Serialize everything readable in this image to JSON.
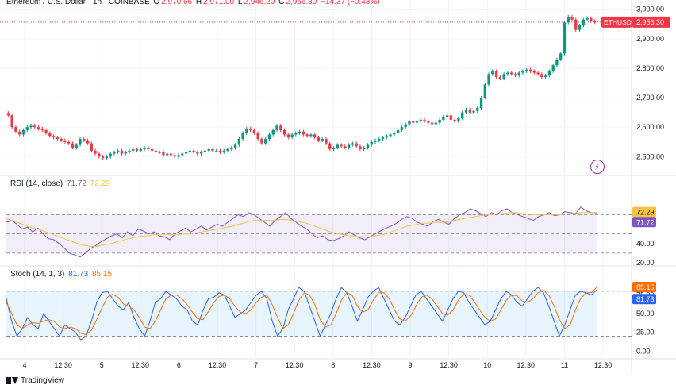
{
  "header": {
    "symbol_title": "Ethereum / U.S. Dollar · 1h · COINBASE",
    "o_label": "O",
    "o_value": "2,970.66",
    "h_label": "H",
    "h_value": "2,971.00",
    "l_label": "L",
    "l_value": "2,946.20",
    "c_label": "C",
    "c_value": "2,956.30",
    "change": "−14.37 (−0.48%)"
  },
  "price_tag": {
    "symbol": "ETHUSD",
    "value": "2,956.30",
    "color": "#f23645"
  },
  "rsi": {
    "title": "RSI (14, close)",
    "value1": "71.72",
    "value2": "72.29",
    "color_rsi": "#7e57c2",
    "color_ma": "#f5c242"
  },
  "stoch": {
    "title": "Stoch (14, 1, 3)",
    "value1": "81.73",
    "value2": "85.15",
    "color_k": "#2962ff",
    "color_d": "#ff6d00"
  },
  "footer": {
    "brand": "TradingView"
  },
  "colors": {
    "up": "#089981",
    "down": "#f23645",
    "grid": "#f0f3fa"
  },
  "chart_data": [
    {
      "type": "candlestick",
      "title": "Ethereum / U.S. Dollar · 1h · COINBASE",
      "x_ticks": [
        "4",
        "12:30",
        "5",
        "12:30",
        "6",
        "12:30",
        "7",
        "12:30",
        "8",
        "12:30",
        "9",
        "12:30",
        "10",
        "12:30",
        "11",
        "12:30"
      ],
      "y_ticks": [
        "2,500.00",
        "2,600.00",
        "2,700.00",
        "2,800.00",
        "2,900.00",
        "3,000.00"
      ],
      "ylim": [
        2455,
        3010
      ],
      "close_series": [
        2640,
        2600,
        2585,
        2575,
        2590,
        2600,
        2605,
        2600,
        2595,
        2590,
        2580,
        2570,
        2565,
        2560,
        2555,
        2550,
        2545,
        2530,
        2540,
        2560,
        2555,
        2545,
        2520,
        2510,
        2500,
        2495,
        2500,
        2510,
        2515,
        2520,
        2510,
        2515,
        2520,
        2525,
        2520,
        2525,
        2530,
        2525,
        2520,
        2515,
        2515,
        2505,
        2510,
        2505,
        2500,
        2505,
        2510,
        2515,
        2520,
        2515,
        2510,
        2515,
        2520,
        2525,
        2520,
        2520,
        2515,
        2520,
        2525,
        2530,
        2540,
        2560,
        2580,
        2595,
        2590,
        2580,
        2560,
        2545,
        2560,
        2575,
        2590,
        2605,
        2590,
        2575,
        2565,
        2575,
        2580,
        2585,
        2575,
        2570,
        2575,
        2565,
        2555,
        2560,
        2545,
        2525,
        2530,
        2540,
        2535,
        2530,
        2540,
        2545,
        2535,
        2525,
        2530,
        2540,
        2550,
        2555,
        2560,
        2565,
        2570,
        2575,
        2580,
        2590,
        2600,
        2610,
        2620,
        2615,
        2620,
        2625,
        2620,
        2615,
        2610,
        2615,
        2625,
        2635,
        2640,
        2625,
        2620,
        2630,
        2650,
        2660,
        2650,
        2655,
        2665,
        2700,
        2745,
        2780,
        2790,
        2770,
        2765,
        2780,
        2785,
        2780,
        2775,
        2785,
        2790,
        2795,
        2790,
        2785,
        2780,
        2770,
        2775,
        2790,
        2810,
        2830,
        2850,
        2955,
        2975,
        2965,
        2930,
        2945,
        2965,
        2970,
        2960,
        2956
      ],
      "last": 2956.3
    },
    {
      "type": "line",
      "title": "RSI (14, close)",
      "series": [
        {
          "name": "RSI",
          "values": [
            62,
            64,
            60,
            55,
            57,
            52,
            56,
            50,
            45,
            44,
            40,
            35,
            30,
            28,
            26,
            30,
            35,
            38,
            42,
            45,
            48,
            50,
            46,
            52,
            48,
            55,
            53,
            50,
            52,
            48,
            47,
            44,
            50,
            53,
            56,
            52,
            55,
            58,
            54,
            57,
            60,
            58,
            62,
            66,
            70,
            68,
            72,
            70,
            66,
            62,
            58,
            64,
            68,
            72,
            66,
            62,
            58,
            55,
            50,
            46,
            48,
            44,
            43,
            45,
            48,
            52,
            49,
            46,
            44,
            47,
            50,
            53,
            56,
            58,
            61,
            65,
            68,
            66,
            62,
            60,
            58,
            63,
            65,
            62,
            60,
            66,
            70,
            72,
            76,
            74,
            71,
            68,
            72,
            70,
            74,
            76,
            72,
            70,
            68,
            66,
            64,
            68,
            70,
            72,
            69,
            70,
            73,
            72,
            71,
            78,
            74,
            72,
            71.72
          ]
        },
        {
          "name": "MA",
          "values": [
            66,
            64,
            62,
            60,
            58,
            56,
            55,
            53,
            51,
            49,
            47,
            45,
            43,
            41,
            39,
            38,
            37,
            37,
            38,
            39,
            40,
            42,
            43,
            45,
            46,
            47,
            48,
            48,
            49,
            49,
            49,
            49,
            49,
            49,
            50,
            50,
            51,
            52,
            53,
            54,
            55,
            56,
            57,
            58,
            60,
            61,
            63,
            64,
            64,
            64,
            64,
            64,
            65,
            65,
            64,
            63,
            62,
            61,
            59,
            57,
            55,
            53,
            51,
            50,
            49,
            48,
            48,
            47,
            47,
            47,
            48,
            49,
            50,
            52,
            54,
            56,
            58,
            59,
            60,
            61,
            61,
            62,
            62,
            62,
            63,
            64,
            65,
            66,
            67,
            68,
            69,
            70,
            70,
            71,
            71,
            72,
            72,
            72,
            71,
            71,
            70,
            70,
            70,
            70,
            70,
            70,
            71,
            71,
            71,
            72,
            72,
            72,
            72.29
          ]
        }
      ],
      "ylim": [
        20,
        100
      ],
      "y_ticks": [
        "20.00",
        "40.00",
        "60.00"
      ],
      "bands": [
        30,
        50,
        70
      ]
    },
    {
      "type": "line",
      "title": "Stoch (14, 1, 3)",
      "series": [
        {
          "name": "K",
          "values": [
            70,
            40,
            20,
            30,
            45,
            35,
            30,
            50,
            40,
            30,
            20,
            35,
            30,
            25,
            15,
            20,
            40,
            65,
            78,
            80,
            70,
            60,
            55,
            65,
            45,
            30,
            20,
            40,
            65,
            70,
            80,
            75,
            70,
            60,
            55,
            40,
            35,
            55,
            70,
            72,
            78,
            75,
            60,
            45,
            50,
            55,
            65,
            75,
            80,
            70,
            40,
            20,
            30,
            55,
            70,
            85,
            80,
            60,
            40,
            20,
            35,
            50,
            70,
            85,
            78,
            60,
            40,
            55,
            72,
            80,
            85,
            70,
            55,
            40,
            35,
            45,
            60,
            75,
            80,
            70,
            60,
            50,
            40,
            55,
            70,
            80,
            78,
            65,
            55,
            45,
            35,
            40,
            55,
            70,
            80,
            75,
            65,
            60,
            70,
            80,
            85,
            78,
            60,
            40,
            20,
            35,
            55,
            75,
            80,
            78,
            75,
            81.73
          ]
        },
        {
          "name": "D",
          "values": [
            65,
            50,
            35,
            30,
            35,
            38,
            37,
            40,
            42,
            40,
            32,
            30,
            32,
            30,
            24,
            22,
            28,
            42,
            58,
            72,
            76,
            72,
            63,
            60,
            55,
            45,
            32,
            30,
            40,
            55,
            70,
            75,
            75,
            70,
            62,
            52,
            43,
            42,
            53,
            65,
            73,
            75,
            70,
            60,
            52,
            50,
            55,
            65,
            72,
            75,
            62,
            45,
            30,
            35,
            50,
            68,
            78,
            75,
            62,
            42,
            32,
            35,
            50,
            68,
            78,
            75,
            60,
            52,
            55,
            68,
            78,
            78,
            70,
            55,
            43,
            40,
            47,
            60,
            72,
            75,
            70,
            60,
            50,
            48,
            55,
            68,
            76,
            75,
            66,
            55,
            45,
            40,
            43,
            55,
            68,
            75,
            74,
            67,
            65,
            70,
            78,
            81,
            75,
            60,
            42,
            30,
            35,
            55,
            70,
            78,
            78,
            85.15
          ]
        }
      ],
      "ylim": [
        -5,
        100
      ],
      "y_ticks": [
        "0.00",
        "25.00",
        "50.00",
        "75.00"
      ],
      "bands": [
        20,
        80
      ]
    }
  ]
}
